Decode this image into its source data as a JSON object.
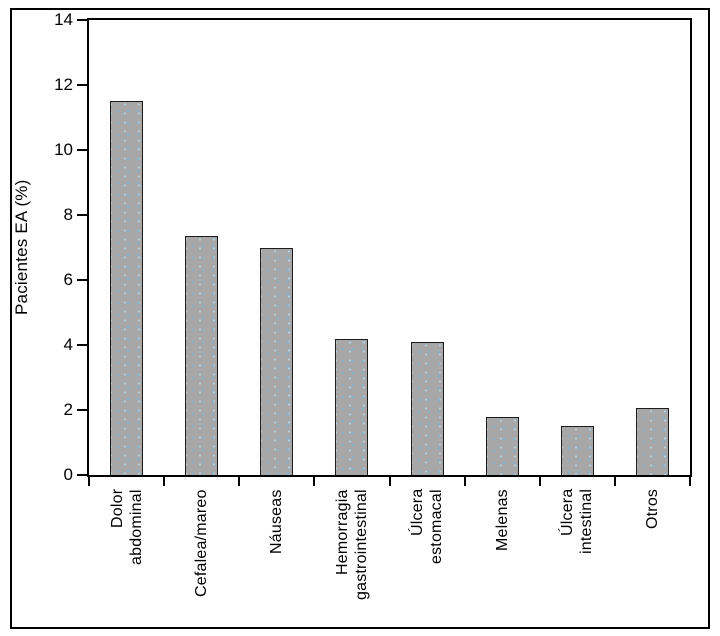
{
  "chart_data": {
    "type": "bar",
    "ylabel": "Pacientes EA (%)",
    "categories": [
      "Dolor abdominal",
      "Cefalea/mareo",
      "Náuseas",
      "Hemorragia gastrointestinal",
      "Úlcera estomacal",
      "Melenas",
      "Úlcera intestinal",
      "Otros"
    ],
    "label_lines": [
      [
        "Dolor",
        "abdominal"
      ],
      [
        "Cefalea/mareo"
      ],
      [
        "Náuseas"
      ],
      [
        "Hemorragia",
        "gastrointestinal"
      ],
      [
        "Úlcera",
        "estomacal"
      ],
      [
        "Melenas"
      ],
      [
        "Úlcera",
        "intestinal"
      ],
      [
        "Otros"
      ]
    ],
    "values": [
      11.5,
      7.35,
      7.0,
      4.2,
      4.1,
      1.8,
      1.5,
      2.05
    ],
    "ylim": [
      0,
      14
    ],
    "yticks": [
      0,
      2,
      4,
      6,
      8,
      10,
      12,
      14
    ],
    "grid": false,
    "legend_position": "none",
    "x_tick_style": "category-boundaries",
    "label_rotation_deg": 90,
    "colors": {
      "bar_fill": "#a7a7a7",
      "bar_stipple_dot": "#7fb3cf",
      "bar_border": "#1c1c1c",
      "axis": "#000000",
      "text": "#000000",
      "background": "#ffffff"
    }
  }
}
